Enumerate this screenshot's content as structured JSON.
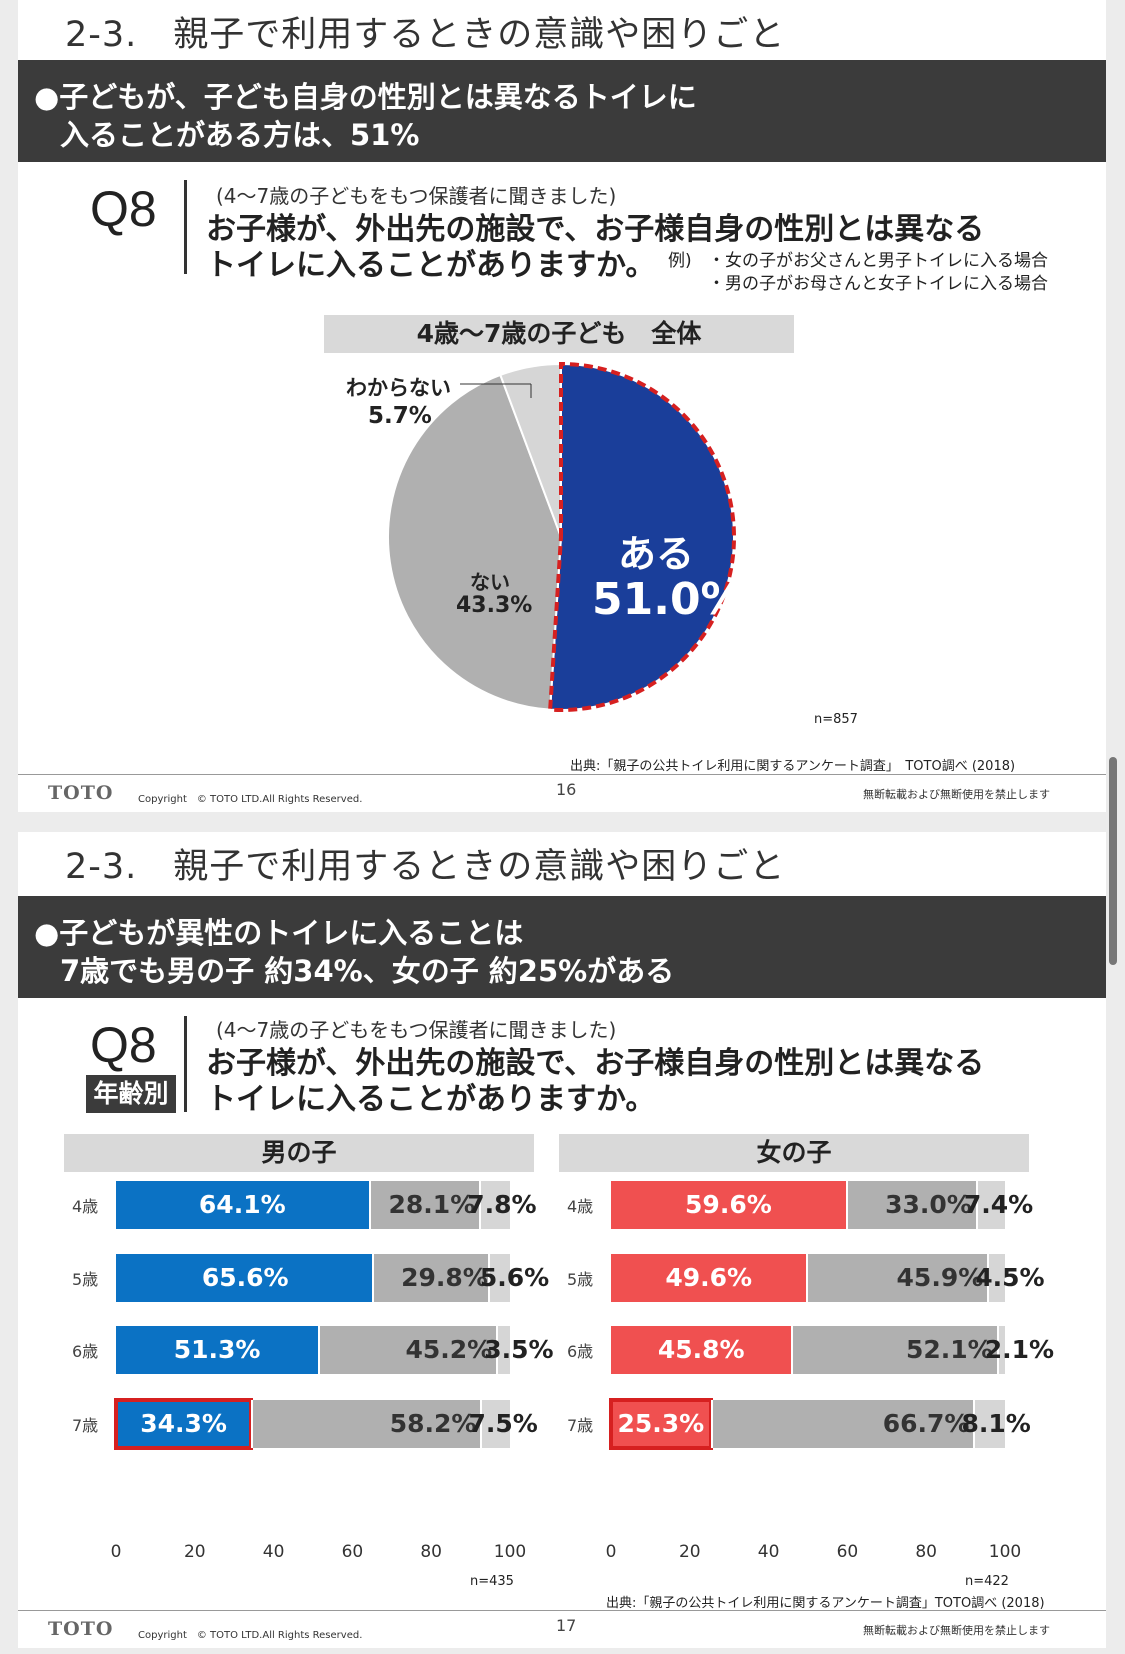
{
  "slide1": {
    "section_title": "2-3.　親子で利用するときの意識や困りごと",
    "banner": [
      "●子どもが、子ども自身の性別とは異なるトイレに",
      "入ることがある方は、51%"
    ],
    "q_label": "Q8",
    "q_sub": "(4〜7歳の子どもをもつ保護者に聞きました)",
    "q_main": [
      "お子様が、外出先の施設で、お子様自身の性別とは異なる",
      "トイレに入ることがありますか。"
    ],
    "example_label": "例)",
    "examples": [
      "・女の子がお父さんと男子トイレに入る場合",
      "・男の子がお母さんと女子トイレに入る場合"
    ],
    "n": "n=857",
    "source": "出典:「親子の公共トイレ利用に関するアンケート調査」　TOTO調べ (2018)",
    "footer": {
      "logo": "TOTO",
      "copyright": "Copyright　© TOTO LTD.All Rights Reserved.",
      "page": "16",
      "rights": "無断転載および無断使用を禁止します"
    }
  },
  "slide2": {
    "section_title": "2-3.　親子で利用するときの意識や困りごと",
    "banner": [
      "●子どもが異性のトイレに入ることは",
      "7歳でも男の子 約34%、女の子 約25%がある"
    ],
    "q_label": "Q8",
    "age_badge": "年齢別",
    "q_sub": "(4〜7歳の子どもをもつ保護者に聞きました)",
    "q_main": [
      "お子様が、外出先の施設で、お子様自身の性別とは異なる",
      "トイレに入ることがありますか。"
    ],
    "source": "出典:「親子の公共トイレ利用に関するアンケート調査」TOTO調べ (2018)",
    "footer": {
      "logo": "TOTO",
      "copyright": "Copyright　© TOTO LTD.All Rights Reserved.",
      "page": "17",
      "rights": "無断転載および無断使用を禁止します"
    }
  },
  "colors": {
    "blue_dark": "#1a3e9a",
    "blue": "#0b72c4",
    "red": "#f05050",
    "gray": "#b0b0b0",
    "light_gray": "#d6d6d6",
    "highlight": "#d62020"
  },
  "chart_data": [
    {
      "type": "pie",
      "title": "4歳〜7歳の子ども　全体",
      "slices": [
        {
          "label": "ある",
          "value": 51.0,
          "value_text": "51.0%"
        },
        {
          "label": "ない",
          "value": 43.3,
          "value_text": "43.3%"
        },
        {
          "label": "わからない",
          "value": 5.7,
          "value_text": "5.7%"
        }
      ],
      "n": "n=857",
      "highlight": "ある"
    },
    {
      "type": "bar",
      "orientation": "horizontal",
      "stacked": true,
      "title": "男の子",
      "categories": [
        "4歳",
        "5歳",
        "6歳",
        "7歳"
      ],
      "series": [
        {
          "name": "ある",
          "values": [
            64.1,
            65.6,
            51.3,
            34.3
          ]
        },
        {
          "name": "ない",
          "values": [
            28.1,
            29.8,
            45.2,
            58.2
          ]
        },
        {
          "name": "わからない",
          "values": [
            7.8,
            5.6,
            3.5,
            7.5
          ]
        }
      ],
      "xlim": [
        0,
        100
      ],
      "xticks": [
        "0",
        "20",
        "40",
        "60",
        "80",
        "100"
      ],
      "n": "n=435",
      "highlight": "7歳 ある"
    },
    {
      "type": "bar",
      "orientation": "horizontal",
      "stacked": true,
      "title": "女の子",
      "categories": [
        "4歳",
        "5歳",
        "6歳",
        "7歳"
      ],
      "series": [
        {
          "name": "ある",
          "values": [
            59.6,
            49.6,
            45.8,
            25.3
          ]
        },
        {
          "name": "ない",
          "values": [
            33.0,
            45.9,
            52.1,
            66.7
          ]
        },
        {
          "name": "わからない",
          "values": [
            7.4,
            4.5,
            2.1,
            8.1
          ]
        }
      ],
      "xlim": [
        0,
        100
      ],
      "xticks": [
        "0",
        "20",
        "40",
        "60",
        "80",
        "100"
      ],
      "n": "n=422",
      "highlight": "7歳 ある"
    }
  ]
}
